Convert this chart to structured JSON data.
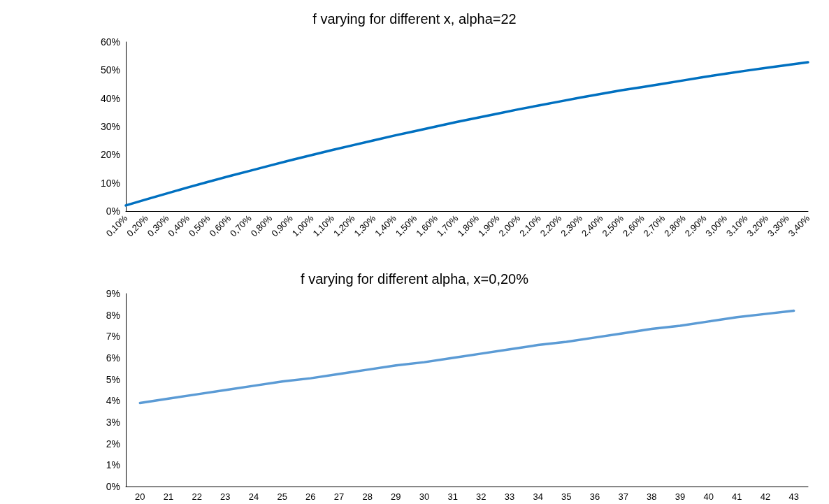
{
  "chart_data": [
    {
      "type": "line",
      "title": "f varying for different x, alpha=22",
      "categories": [
        "0,10%",
        "0,20%",
        "0,30%",
        "0,40%",
        "0,50%",
        "0,60%",
        "0,70%",
        "0,80%",
        "0,90%",
        "1,00%",
        "1,10%",
        "1,20%",
        "1,30%",
        "1,40%",
        "1,50%",
        "1,60%",
        "1,70%",
        "1,80%",
        "1,90%",
        "2,00%",
        "2,10%",
        "2,20%",
        "2,30%",
        "2,40%",
        "2,50%",
        "2,60%",
        "2,70%",
        "2,80%",
        "2,90%",
        "3,00%",
        "3,10%",
        "3,20%",
        "3,30%",
        "3,40%"
      ],
      "series": [
        {
          "color": "#0070c0",
          "values": [
            2.0,
            4.2,
            6.3,
            8.4,
            10.4,
            12.4,
            14.3,
            16.2,
            18.1,
            19.9,
            21.7,
            23.4,
            25.1,
            26.8,
            28.4,
            30.0,
            31.6,
            33.1,
            34.6,
            36.1,
            37.5,
            38.9,
            40.3,
            41.6,
            42.9,
            44.0,
            45.2,
            46.4,
            47.6,
            48.7,
            49.8,
            50.8,
            51.8,
            52.8
          ]
        }
      ],
      "ylim": [
        0,
        60
      ],
      "yticks": [
        {
          "value": 0,
          "label": "0%"
        },
        {
          "value": 10,
          "label": "10%"
        },
        {
          "value": 20,
          "label": "20%"
        },
        {
          "value": 30,
          "label": "30%"
        },
        {
          "value": 40,
          "label": "40%"
        },
        {
          "value": 50,
          "label": "50%"
        },
        {
          "value": 60,
          "label": "60%"
        }
      ],
      "grid": false,
      "marker": "none",
      "line_style": "solid"
    },
    {
      "type": "line",
      "title": "f varying for different alpha, x=0,20%",
      "categories": [
        "20",
        "21",
        "22",
        "23",
        "24",
        "25",
        "26",
        "27",
        "28",
        "29",
        "30",
        "31",
        "32",
        "33",
        "34",
        "35",
        "36",
        "37",
        "38",
        "39",
        "40",
        "41",
        "42",
        "43"
      ],
      "series": [
        {
          "color": "#5b9bd5",
          "values": [
            3.9,
            4.1,
            4.3,
            4.5,
            4.7,
            4.9,
            5.05,
            5.25,
            5.45,
            5.65,
            5.8,
            6.0,
            6.2,
            6.4,
            6.6,
            6.75,
            6.95,
            7.15,
            7.35,
            7.5,
            7.7,
            7.9,
            8.05,
            8.2
          ]
        }
      ],
      "ylim": [
        0,
        9
      ],
      "yticks": [
        {
          "value": 0,
          "label": "0%"
        },
        {
          "value": 1,
          "label": "1%"
        },
        {
          "value": 2,
          "label": "2%"
        },
        {
          "value": 3,
          "label": "3%"
        },
        {
          "value": 4,
          "label": "4%"
        },
        {
          "value": 5,
          "label": "5%"
        },
        {
          "value": 6,
          "label": "6%"
        },
        {
          "value": 7,
          "label": "7%"
        },
        {
          "value": 8,
          "label": "8%"
        },
        {
          "value": 9,
          "label": "9%"
        }
      ],
      "grid": false,
      "marker": "none",
      "line_style": "solid"
    }
  ]
}
